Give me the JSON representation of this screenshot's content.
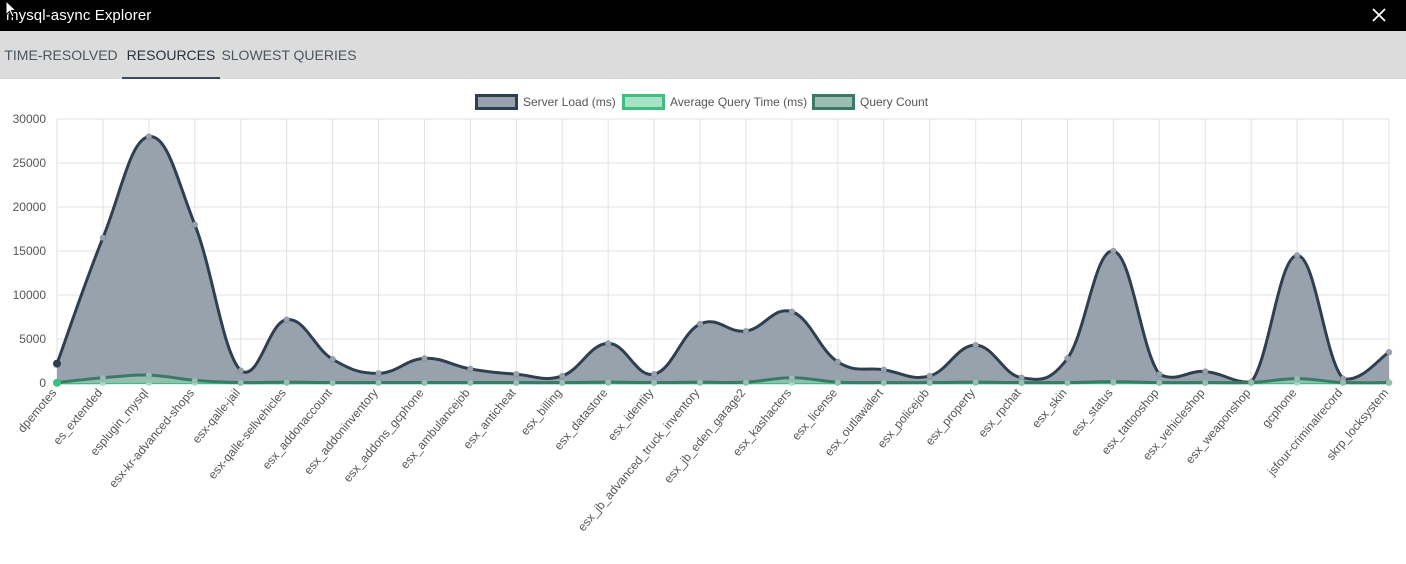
{
  "window": {
    "title": "mysql-async Explorer",
    "close_icon": "close-icon"
  },
  "tabs": [
    {
      "label": "TIME-RESOLVED",
      "active": false
    },
    {
      "label": "RESOURCES",
      "active": true
    },
    {
      "label": "SLOWEST QUERIES",
      "active": false
    }
  ],
  "colors": {
    "titlebar": "#000000",
    "tabbar": "#dcdcdc",
    "server_load_line": "#2f3f52",
    "server_load_fill": "#98a2ad",
    "avg_query_line": "#3fbf7f",
    "avg_query_fill": "#a8e2c4",
    "query_count_line": "#3a7a66",
    "query_count_fill": "#9bbfb2",
    "grid": "#e2e2e2"
  },
  "chart_data": {
    "type": "line",
    "fill": true,
    "smooth": true,
    "legend_position": "top",
    "grid": true,
    "ylim": [
      0,
      30000
    ],
    "yticks": [
      0,
      5000,
      10000,
      15000,
      20000,
      25000,
      30000
    ],
    "categories": [
      "dpemotes",
      "es_extended",
      "esplugin_mysql",
      "esx-kr-advanced-shops",
      "esx-qalle-jail",
      "esx-qalle-sellvehicles",
      "esx_addonaccount",
      "esx_addoninventory",
      "esx_addons_gcphone",
      "esx_ambulancejob",
      "esx_anticheat",
      "esx_billing",
      "esx_datastore",
      "esx_identity",
      "esx_jb_advanced_truck_inventory",
      "esx_jb_eden_garage2",
      "esx_kashacters",
      "esx_license",
      "esx_outlawalert",
      "esx_policejob",
      "esx_property",
      "esx_rpchat",
      "esx_skin",
      "esx_status",
      "esx_tattooshop",
      "esx_vehicleshop",
      "esx_weaponshop",
      "gcphone",
      "jsfour-criminalrecord",
      "skrp_locksystem"
    ],
    "series": [
      {
        "name": "Server Load (ms)",
        "values": [
          2200,
          16500,
          28000,
          18000,
          1400,
          7200,
          2700,
          1100,
          2800,
          1600,
          1000,
          800,
          4500,
          1000,
          6700,
          5900,
          8100,
          2400,
          1500,
          800,
          4300,
          600,
          2800,
          15000,
          1000,
          1300,
          100,
          14500,
          500,
          3500
        ]
      },
      {
        "name": "Average Query Time (ms)",
        "values": [
          20,
          30,
          40,
          30,
          20,
          20,
          20,
          20,
          20,
          20,
          20,
          20,
          20,
          20,
          20,
          20,
          30,
          20,
          20,
          20,
          20,
          20,
          20,
          30,
          20,
          20,
          20,
          30,
          20,
          20
        ]
      },
      {
        "name": "Query Count",
        "values": [
          50,
          600,
          900,
          300,
          50,
          100,
          50,
          50,
          50,
          50,
          50,
          50,
          100,
          50,
          100,
          100,
          600,
          100,
          50,
          50,
          100,
          50,
          50,
          150,
          50,
          50,
          50,
          500,
          50,
          50
        ]
      }
    ]
  }
}
